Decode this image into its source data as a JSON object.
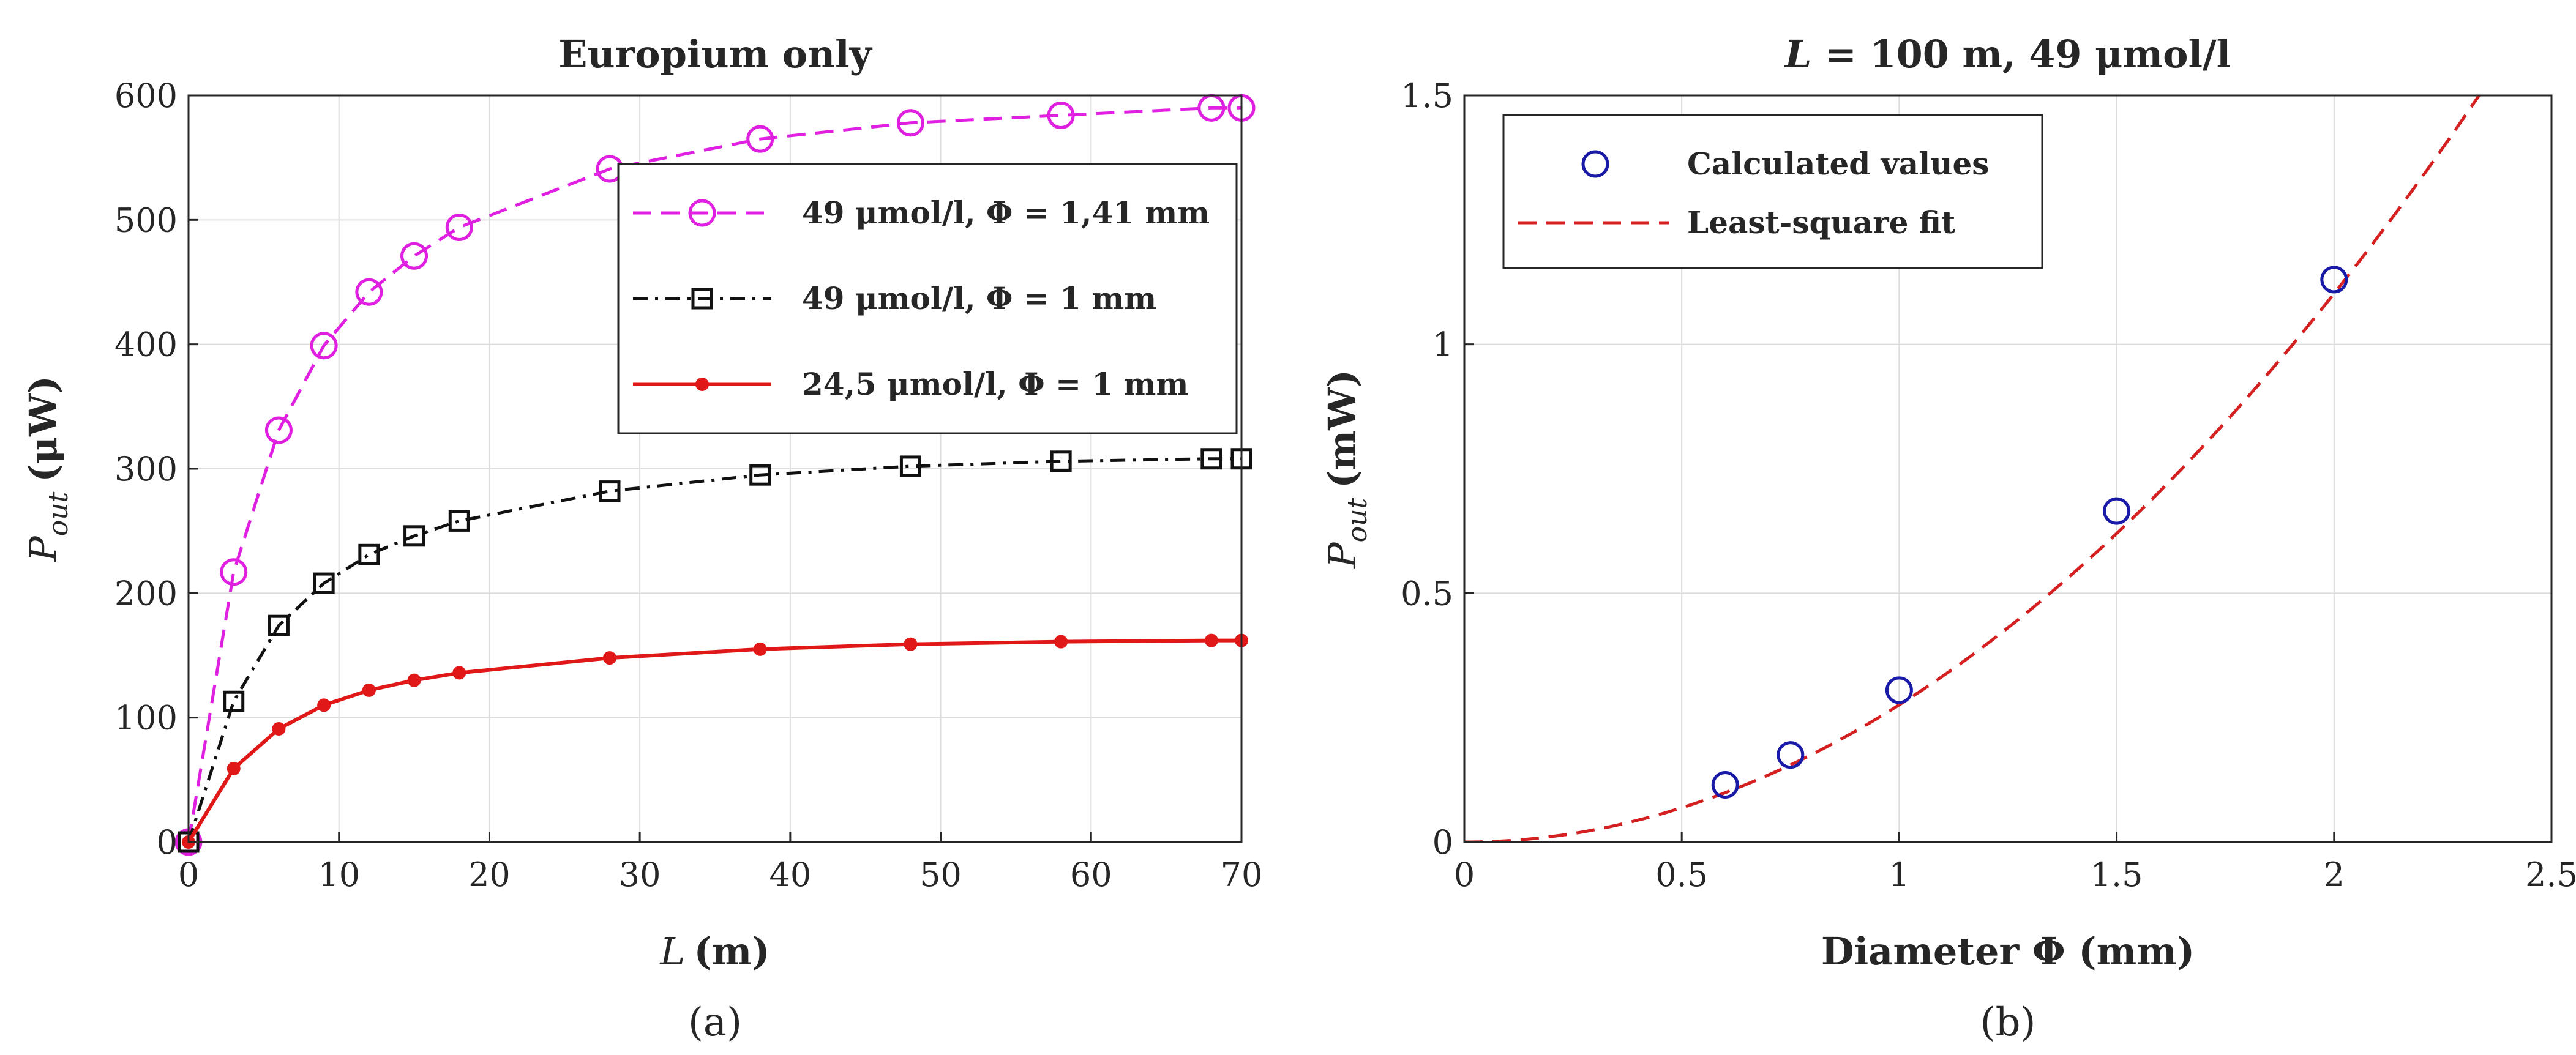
{
  "chart_data": [
    {
      "type": "line",
      "panel_label": "(a)",
      "title": "Europium only",
      "xlabel_var": "L",
      "xlabel_unit": "(m)",
      "ylabel_var": "P",
      "ylabel_sub": "out",
      "ylabel_unit": "(μW)",
      "xlim": [
        0,
        70
      ],
      "ylim": [
        0,
        600
      ],
      "xticks": [
        0,
        10,
        20,
        30,
        40,
        50,
        60,
        70
      ],
      "yticks": [
        0,
        100,
        200,
        300,
        400,
        500,
        600
      ],
      "grid": true,
      "legend_position": "top-right",
      "series": [
        {
          "name": "49 μmol/l, Φ = 1,41 mm",
          "color": "#e020e0",
          "line": "dashed",
          "marker": "circle",
          "x": [
            0,
            3,
            6,
            9,
            12,
            15,
            18,
            28,
            38,
            48,
            58,
            68,
            70
          ],
          "y": [
            0,
            217,
            331,
            399,
            442,
            471,
            494,
            541,
            565,
            578,
            584,
            590,
            590
          ]
        },
        {
          "name": "49 μmol/l, Φ = 1 mm",
          "color": "#111111",
          "line": "dashdot",
          "marker": "square",
          "x": [
            0,
            3,
            6,
            9,
            12,
            15,
            18,
            28,
            38,
            48,
            58,
            68,
            70
          ],
          "y": [
            0,
            113,
            174,
            208,
            231,
            246,
            258,
            282,
            295,
            302,
            306,
            308,
            308
          ]
        },
        {
          "name": "24,5 μmol/l, Φ = 1 mm",
          "color": "#e01818",
          "line": "solid",
          "marker": "dot",
          "x": [
            0,
            3,
            6,
            9,
            12,
            15,
            18,
            28,
            38,
            48,
            58,
            68,
            70
          ],
          "y": [
            0,
            59,
            91,
            110,
            122,
            130,
            136,
            148,
            155,
            159,
            161,
            162,
            162
          ]
        }
      ]
    },
    {
      "type": "scatter",
      "panel_label": "(b)",
      "title_var": "L",
      "title_rest": " = 100 m, 49 μmol/l",
      "xlabel": "Diameter Φ (mm)",
      "ylabel_var": "P",
      "ylabel_sub": "out",
      "ylabel_unit": "(mW)",
      "xlim": [
        0,
        2.5
      ],
      "ylim": [
        0,
        1.5
      ],
      "xticks": [
        0,
        0.5,
        1,
        1.5,
        2,
        2.5
      ],
      "yticks": [
        0,
        0.5,
        1,
        1.5
      ],
      "grid": true,
      "legend_position": "top-left",
      "series": [
        {
          "name": "Calculated values",
          "color": "#1a1aa8",
          "marker": "circle",
          "x": [
            0.6,
            0.75,
            1.0,
            1.5,
            2.0
          ],
          "y": [
            0.115,
            0.175,
            0.305,
            0.665,
            1.13
          ]
        },
        {
          "name": "Least-square fit",
          "color": "#d42020",
          "line": "dashed",
          "fit": {
            "form": "a*x^2",
            "a": 0.2755
          }
        }
      ]
    }
  ]
}
